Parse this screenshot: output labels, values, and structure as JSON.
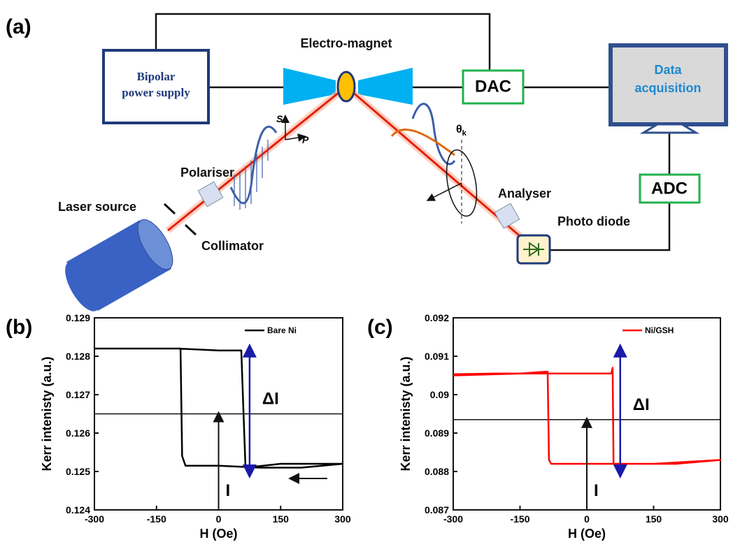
{
  "diagram": {
    "panel_label": "(a)",
    "labels": {
      "power_supply": [
        "Bipolar",
        "power supply"
      ],
      "magnet": "Electro-magnet",
      "dac": "DAC",
      "acquisition": [
        "Data",
        "acquisition"
      ],
      "adc": "ADC",
      "polariser": "Polariser",
      "laser": "Laser source",
      "collimator": "Collimator",
      "analyser": "Analyser",
      "photodiode": "Photo diode",
      "theta": "θ",
      "theta_sub": "k",
      "s": "S",
      "p": "P"
    }
  },
  "chart_data": [
    {
      "type": "line",
      "panel_label": "(b)",
      "xlabel": "H (Oe)",
      "ylabel": "Kerr intenisty (a.u.)",
      "x": [
        -300,
        -200,
        -100,
        0,
        55,
        60,
        65,
        150,
        300,
        200,
        100,
        0,
        -80,
        -88,
        -92,
        -150,
        -300
      ],
      "series": [
        {
          "name": "Bare Ni",
          "color": "#000000",
          "values": [
            0.1282,
            0.1282,
            0.1282,
            0.12815,
            0.12815,
            0.1266,
            0.1251,
            0.1252,
            0.1252,
            0.1251,
            0.1251,
            0.12515,
            0.12515,
            0.1254,
            0.1282,
            0.1282,
            0.1282
          ]
        }
      ],
      "hline": 0.1265,
      "annotations": [
        "ΔI",
        "I"
      ],
      "xlim": [
        -300,
        300
      ],
      "xticks": [
        -300,
        -150,
        0,
        150,
        300
      ],
      "ylim": [
        0.124,
        0.129
      ],
      "yticks": [
        0.124,
        0.125,
        0.126,
        0.127,
        0.128,
        0.129
      ],
      "legend": "upper right"
    },
    {
      "type": "line",
      "panel_label": "(c)",
      "xlabel": "H (Oe)",
      "ylabel": "Kerr intenisty (a.u.)",
      "x": [
        -300,
        -200,
        -100,
        0,
        55,
        58,
        60,
        150,
        300,
        200,
        100,
        0,
        -80,
        -85,
        -88,
        -150,
        -300
      ],
      "series": [
        {
          "name": "Ni/GSH",
          "color": "#ff0000",
          "values": [
            0.09053,
            0.09055,
            0.09055,
            0.09055,
            0.09055,
            0.0907,
            0.0882,
            0.0882,
            0.0883,
            0.0882,
            0.0882,
            0.0882,
            0.0882,
            0.0883,
            0.0906,
            0.09055,
            0.0905
          ]
        }
      ],
      "hline": 0.08935,
      "annotations": [
        "ΔI",
        "I"
      ],
      "xlim": [
        -300,
        300
      ],
      "xticks": [
        -300,
        -150,
        0,
        150,
        300
      ],
      "ylim": [
        0.087,
        0.092
      ],
      "yticks": [
        0.087,
        0.088,
        0.089,
        0.09,
        {
          "value": 0.091,
          "label": "0.091"
        },
        0.092
      ],
      "legend": "upper right"
    }
  ]
}
